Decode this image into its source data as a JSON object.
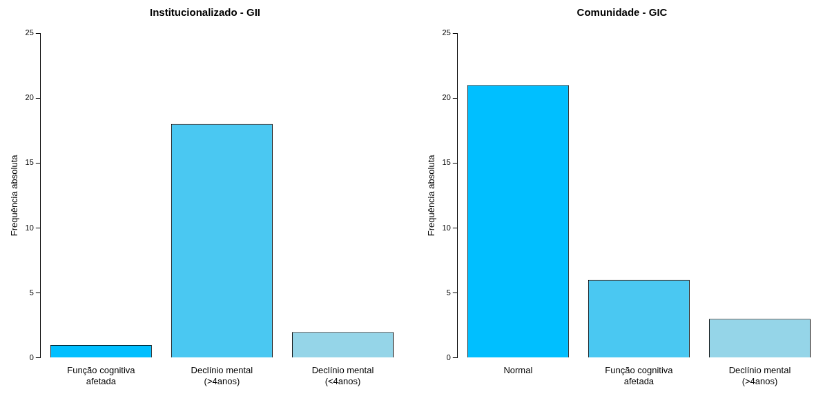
{
  "chart_data": [
    {
      "type": "bar",
      "title": "Institucionalizado - GII",
      "ylabel": "Frequência absoluta",
      "categories": [
        "Função cognitiva afetada",
        "Declínio mental (>4anos)",
        "Declínio mental (<4anos)"
      ],
      "values": [
        1,
        18,
        2
      ],
      "colors": [
        "#00bfff",
        "#4ac8f2",
        "#95d5e8"
      ],
      "ylim": [
        0,
        25
      ],
      "yticks": [
        0,
        5,
        10,
        15,
        20,
        25
      ]
    },
    {
      "type": "bar",
      "title": "Comunidade - GIC",
      "ylabel": "Frequência absoluta",
      "categories": [
        "Normal",
        "Função cognitiva afetada",
        "Declínio mental (>4anos)"
      ],
      "values": [
        21,
        6,
        3
      ],
      "colors": [
        "#00bfff",
        "#4ac8f2",
        "#95d5e8"
      ],
      "ylim": [
        0,
        25
      ],
      "yticks": [
        0,
        5,
        10,
        15,
        20,
        25
      ]
    }
  ]
}
